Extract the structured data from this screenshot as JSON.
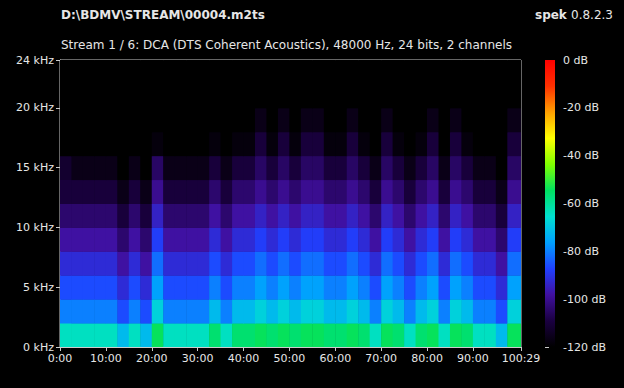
{
  "chart_data": {
    "type": "heatmap",
    "title": "D:\\BDMV\\STREAM\\00004.m2ts",
    "subtitle": "Stream 1 / 6: DCA (DTS Coherent Acoustics), 48000 Hz, 24 bits, 2 channels",
    "program": "spek",
    "version": "0.8.2.3",
    "grid": false,
    "xlim": [
      0,
      6029
    ],
    "xticks": [
      {
        "value": 0,
        "label": "0:00"
      },
      {
        "value": 600,
        "label": "10:00"
      },
      {
        "value": 1200,
        "label": "20:00"
      },
      {
        "value": 1800,
        "label": "30:00"
      },
      {
        "value": 2400,
        "label": "40:00"
      },
      {
        "value": 3000,
        "label": "50:00"
      },
      {
        "value": 3600,
        "label": "60:00"
      },
      {
        "value": 4200,
        "label": "70:00"
      },
      {
        "value": 4800,
        "label": "80:00"
      },
      {
        "value": 5400,
        "label": "90:00"
      },
      {
        "value": 6029,
        "label": "100:29"
      }
    ],
    "ylim": [
      0,
      24
    ],
    "yticks": [
      {
        "value": 0,
        "label": "0 kHz"
      },
      {
        "value": 5,
        "label": "5 kHz"
      },
      {
        "value": 10,
        "label": "10 kHz"
      },
      {
        "value": 15,
        "label": "15 kHz"
      },
      {
        "value": 20,
        "label": "20 kHz"
      },
      {
        "value": 24,
        "label": "24 kHz"
      }
    ],
    "x_edges": [
      0,
      150,
      300,
      450,
      600,
      750,
      900,
      1050,
      1200,
      1350,
      1500,
      1650,
      1800,
      1950,
      2100,
      2250,
      2400,
      2550,
      2700,
      2850,
      3000,
      3150,
      3300,
      3450,
      3600,
      3750,
      3900,
      4050,
      4200,
      4350,
      4500,
      4650,
      4800,
      4950,
      5100,
      5250,
      5400,
      5550,
      5700,
      5850,
      6029
    ],
    "y_edges": [
      0,
      2,
      4,
      6,
      8,
      10,
      12,
      14,
      16,
      18,
      20,
      22,
      24
    ],
    "cells": [
      [
        -64,
        -64,
        -64,
        -64,
        -64,
        -72,
        -64,
        -72,
        -54,
        -64,
        -64,
        -64,
        -64,
        -56,
        -64,
        -56,
        -56,
        -54,
        -56,
        -54,
        -56,
        -54,
        -54,
        -56,
        -56,
        -54,
        -56,
        -64,
        -54,
        -56,
        -64,
        -56,
        -54,
        -64,
        -54,
        -56,
        -64,
        -64,
        -72,
        -54
      ],
      [
        -80,
        -80,
        -80,
        -80,
        -80,
        -86,
        -80,
        -86,
        -68,
        -80,
        -80,
        -80,
        -80,
        -72,
        -80,
        -72,
        -72,
        -68,
        -72,
        -68,
        -72,
        -68,
        -68,
        -72,
        -72,
        -68,
        -72,
        -80,
        -68,
        -72,
        -80,
        -72,
        -68,
        -80,
        -68,
        -72,
        -80,
        -80,
        -86,
        -68
      ],
      [
        -86,
        -86,
        -86,
        -86,
        -86,
        -92,
        -86,
        -92,
        -76,
        -86,
        -86,
        -86,
        -86,
        -80,
        -86,
        -80,
        -80,
        -76,
        -80,
        -76,
        -80,
        -76,
        -76,
        -80,
        -80,
        -76,
        -80,
        -86,
        -76,
        -80,
        -86,
        -80,
        -76,
        -86,
        -76,
        -80,
        -86,
        -86,
        -92,
        -76
      ],
      [
        -92,
        -92,
        -92,
        -92,
        -92,
        -98,
        -92,
        -98,
        -82,
        -92,
        -92,
        -92,
        -92,
        -86,
        -92,
        -86,
        -86,
        -82,
        -86,
        -82,
        -86,
        -82,
        -82,
        -86,
        -86,
        -82,
        -86,
        -92,
        -82,
        -86,
        -92,
        -86,
        -82,
        -92,
        -82,
        -86,
        -92,
        -92,
        -98,
        -82
      ],
      [
        -98,
        -98,
        -98,
        -98,
        -98,
        -104,
        -98,
        -104,
        -88,
        -98,
        -98,
        -98,
        -98,
        -92,
        -98,
        -92,
        -92,
        -88,
        -92,
        -88,
        -92,
        -88,
        -88,
        -92,
        -92,
        -88,
        -92,
        -98,
        -88,
        -92,
        -98,
        -92,
        -88,
        -98,
        -88,
        -92,
        -98,
        -98,
        -104,
        -88
      ],
      [
        -104,
        -104,
        -104,
        -104,
        -104,
        -110,
        -104,
        -110,
        -94,
        -104,
        -104,
        -104,
        -104,
        -98,
        -104,
        -98,
        -98,
        -94,
        -98,
        -94,
        -98,
        -94,
        -94,
        -98,
        -98,
        -94,
        -98,
        -104,
        -94,
        -98,
        -104,
        -98,
        -94,
        -104,
        -94,
        -98,
        -104,
        -104,
        -110,
        -94
      ],
      [
        -110,
        -110,
        -110,
        -110,
        -110,
        -116,
        -110,
        -116,
        -100,
        -110,
        -110,
        -110,
        -110,
        -104,
        -110,
        -104,
        -104,
        -100,
        -104,
        -100,
        -104,
        -100,
        -100,
        -104,
        -104,
        -100,
        -104,
        -110,
        -100,
        -104,
        -110,
        -104,
        -100,
        -110,
        -100,
        -104,
        -110,
        -110,
        -116,
        -100
      ],
      [
        -112,
        -116,
        -116,
        -116,
        -116,
        -120,
        -116,
        -120,
        -105,
        -116,
        -116,
        -116,
        -116,
        -110,
        -116,
        -110,
        -110,
        -105,
        -110,
        -105,
        -110,
        -105,
        -105,
        -110,
        -110,
        -105,
        -110,
        -116,
        -105,
        -110,
        -116,
        -110,
        -105,
        -116,
        -105,
        -110,
        -116,
        -116,
        -120,
        -105
      ],
      [
        -120,
        -120,
        -120,
        -120,
        -120,
        -120,
        -120,
        -120,
        -118,
        -120,
        -120,
        -120,
        -120,
        -118,
        -120,
        -118,
        -118,
        -110,
        -118,
        -110,
        -118,
        -110,
        -110,
        -118,
        -118,
        -110,
        -118,
        -120,
        -110,
        -118,
        -120,
        -118,
        -110,
        -120,
        -110,
        -118,
        -120,
        -120,
        -120,
        -110
      ],
      [
        -120,
        -120,
        -120,
        -120,
        -120,
        -120,
        -120,
        -120,
        -120,
        -120,
        -120,
        -120,
        -120,
        -120,
        -120,
        -120,
        -120,
        -116,
        -120,
        -116,
        -120,
        -116,
        -116,
        -120,
        -120,
        -116,
        -120,
        -120,
        -116,
        -120,
        -120,
        -120,
        -116,
        -120,
        -116,
        -120,
        -120,
        -120,
        -120,
        -116
      ],
      [
        -120,
        -120,
        -120,
        -120,
        -120,
        -120,
        -120,
        -120,
        -120,
        -120,
        -120,
        -120,
        -120,
        -120,
        -120,
        -120,
        -120,
        -120,
        -120,
        -120,
        -120,
        -120,
        -120,
        -120,
        -120,
        -120,
        -120,
        -120,
        -120,
        -120,
        -120,
        -120,
        -120,
        -120,
        -120,
        -120,
        -120,
        -120,
        -120,
        -120
      ],
      [
        -120,
        -120,
        -120,
        -120,
        -120,
        -120,
        -120,
        -120,
        -120,
        -120,
        -120,
        -120,
        -120,
        -120,
        -120,
        -120,
        -120,
        -120,
        -120,
        -120,
        -120,
        -120,
        -120,
        -120,
        -120,
        -120,
        -120,
        -120,
        -120,
        -120,
        -120,
        -120,
        -120,
        -120,
        -120,
        -120,
        -120,
        -120,
        -120,
        -120
      ]
    ],
    "cbar_range": [
      -120,
      0
    ],
    "cbar_ticks": [
      {
        "value": -120,
        "label": "-120 dB"
      },
      {
        "value": -100,
        "label": "-100 dB"
      },
      {
        "value": -80,
        "label": "-80 dB"
      },
      {
        "value": -60,
        "label": "-60 dB"
      },
      {
        "value": -40,
        "label": "-40 dB"
      },
      {
        "value": -20,
        "label": "-20 dB"
      },
      {
        "value": 0,
        "label": "0 dB"
      }
    ]
  }
}
